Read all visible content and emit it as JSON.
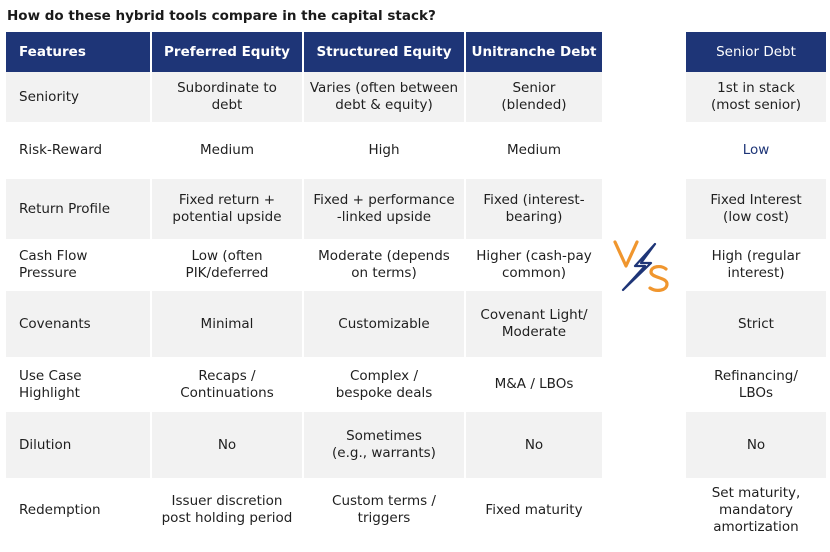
{
  "title": "How do these hybrid tools compare in the capital stack?",
  "colors": {
    "header_bg": "#1e3577",
    "vs_orange": "#f0962e",
    "vs_navy": "#1e3577"
  },
  "vs_icon": "vs-lightning-icon",
  "headers": [
    "Features",
    "Preferred Equity",
    "Structured Equity",
    "Unitranche Debt"
  ],
  "senior_header": "Senior Debt",
  "rows": [
    {
      "feature": "Seniority",
      "pref": "Subordinate to\ndebt",
      "struct": "Varies (often between\ndebt & equity)",
      "uni": "Senior\n(blended)",
      "senior": "1st in stack\n(most senior)"
    },
    {
      "feature": "Risk-Reward",
      "pref": "Medium",
      "struct": "High",
      "uni": "Medium",
      "senior": "Low"
    },
    {
      "feature": "Return Profile",
      "pref": "Fixed return +\npotential upside",
      "struct": "Fixed + performance\n-linked upside",
      "uni": "Fixed (interest-\nbearing)",
      "senior": "Fixed Interest\n(low cost)"
    },
    {
      "feature": "Cash Flow Pressure",
      "pref": "Low (often\nPIK/deferred",
      "struct": "Moderate (depends\non terms)",
      "uni": "Higher (cash-pay\ncommon)",
      "senior": "High (regular\ninterest)"
    },
    {
      "feature": "Covenants",
      "pref": "Minimal",
      "struct": "Customizable",
      "uni": "Covenant Light/\nModerate",
      "senior": "Strict"
    },
    {
      "feature": "Use Case Highlight",
      "pref": "Recaps /\nContinuations",
      "struct": "Complex /\nbespoke deals",
      "uni": "M&A / LBOs",
      "senior": "Refinancing/\nLBOs"
    },
    {
      "feature": "Dilution",
      "pref": "No",
      "struct": "Sometimes\n(e.g., warrants)",
      "uni": "No",
      "senior": "No"
    },
    {
      "feature": "Redemption",
      "pref": "Issuer discretion\npost holding period",
      "struct": "Custom terms /\ntriggers",
      "uni": "Fixed maturity",
      "senior": "Set maturity,\nmandatory\namortization"
    }
  ]
}
